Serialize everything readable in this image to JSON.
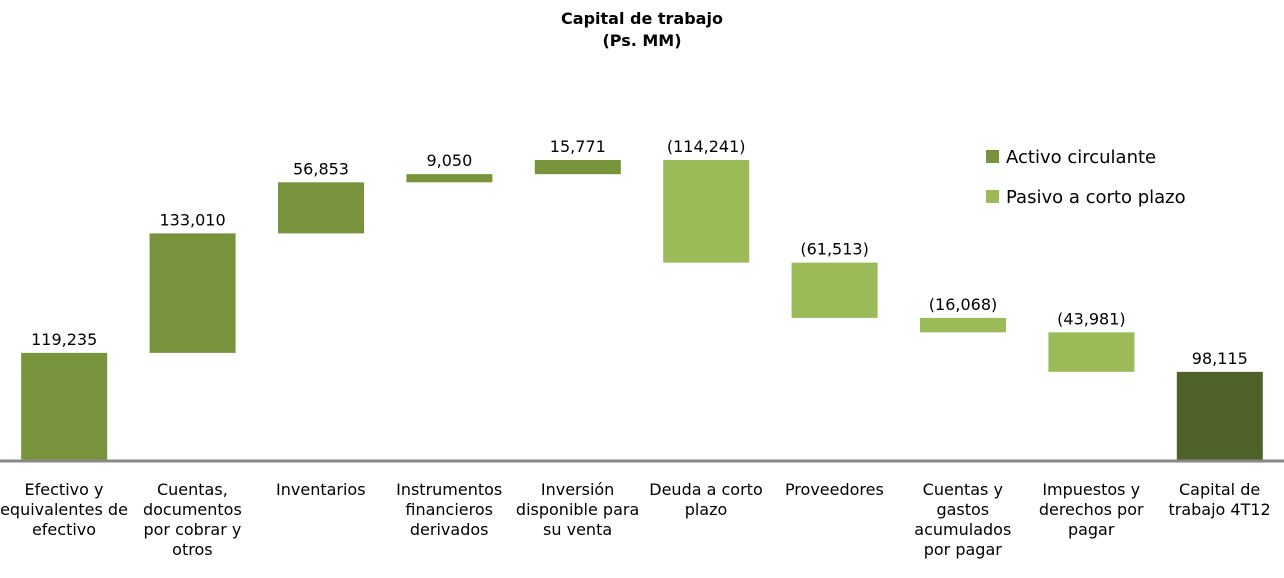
{
  "chart_data": {
    "type": "waterfall",
    "title": "Capital de trabajo",
    "subtitle": "(Ps. MM)",
    "categories": [
      "Efectivo y equivalentes de efectivo",
      "Cuentas, documentos por cobrar y otros",
      "Inventarios",
      "Instrumentos financieros derivados",
      "Inversión disponible para su venta",
      "Deuda a corto plazo",
      "Proveedores",
      "Cuentas y gastos acumulados por pagar",
      "Impuestos y derechos por pagar",
      "Capital de trabajo 4T12"
    ],
    "series": [
      {
        "name": "Activo circulante",
        "color": "#77933c",
        "values": [
          119235,
          133010,
          56853,
          9050,
          15771,
          null,
          null,
          null,
          null,
          null
        ],
        "value_labels": [
          "119,235",
          "133,010",
          "56,853",
          "9,050",
          "15,771",
          null,
          null,
          null,
          null,
          null
        ]
      },
      {
        "name": "Pasivo a corto plazo",
        "color": "#9bbb59",
        "values": [
          null,
          null,
          null,
          null,
          null,
          -114241,
          -61513,
          -16068,
          -43981,
          null
        ],
        "value_labels": [
          null,
          null,
          null,
          null,
          null,
          "(114,241)",
          "(61,513)",
          "(16,068)",
          "(43,981)",
          null
        ]
      }
    ],
    "total": {
      "value": 98115,
      "value_label": "98,115",
      "color": "#4f6228"
    },
    "legend": "top-right"
  }
}
